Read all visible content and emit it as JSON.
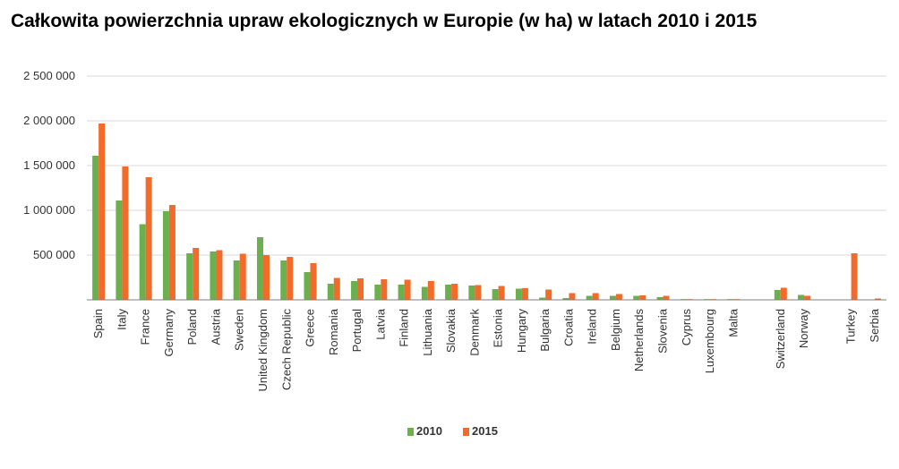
{
  "chart_data": {
    "type": "bar",
    "title": "Całkowita powierzchnia upraw ekologicznych w Europie (w ha) w latach 2010 i 2015",
    "categories": [
      "Spain",
      "Italy",
      "France",
      "Germany",
      "Poland",
      "Austria",
      "Sweden",
      "United Kingdom",
      "Czech Republic",
      "Greece",
      "Romania",
      "Portugal",
      "Latvia",
      "Finland",
      "Lithuania",
      "Slovakia",
      "Denmark",
      "Estonia",
      "Hungary",
      "Bulgaria",
      "Croatia",
      "Ireland",
      "Belgium",
      "Netherlands",
      "Slovenia",
      "Cyprus",
      "Luxembourg",
      "Malta",
      "",
      "Switzerland",
      "Norway",
      "",
      "Turkey",
      "Serbia"
    ],
    "series": [
      {
        "name": "2010",
        "color": "#6ab04c",
        "values": [
          1610000,
          1110000,
          845000,
          990000,
          520000,
          540000,
          440000,
          700000,
          440000,
          310000,
          180000,
          210000,
          170000,
          170000,
          145000,
          170000,
          160000,
          120000,
          125000,
          25000,
          20000,
          45000,
          45000,
          45000,
          30000,
          4000,
          3000,
          500,
          0,
          110000,
          55000,
          0,
          0,
          0
        ]
      },
      {
        "name": "2015",
        "color": "#f26b2a",
        "values": [
          1970000,
          1490000,
          1370000,
          1060000,
          580000,
          555000,
          515000,
          500000,
          480000,
          410000,
          245000,
          240000,
          230000,
          225000,
          210000,
          180000,
          165000,
          155000,
          130000,
          115000,
          75000,
          75000,
          65000,
          50000,
          45000,
          5000,
          4000,
          500,
          0,
          135000,
          45000,
          0,
          520000,
          15000
        ]
      }
    ],
    "yticks": [
      "2 500 000",
      "2 000 000",
      "1 500 000",
      "1 000 000",
      "500 000"
    ],
    "ytick_values": [
      2500000,
      2000000,
      1500000,
      1000000,
      500000
    ],
    "ylim": [
      0,
      2500000
    ],
    "grid": true,
    "legend": "bottom"
  }
}
